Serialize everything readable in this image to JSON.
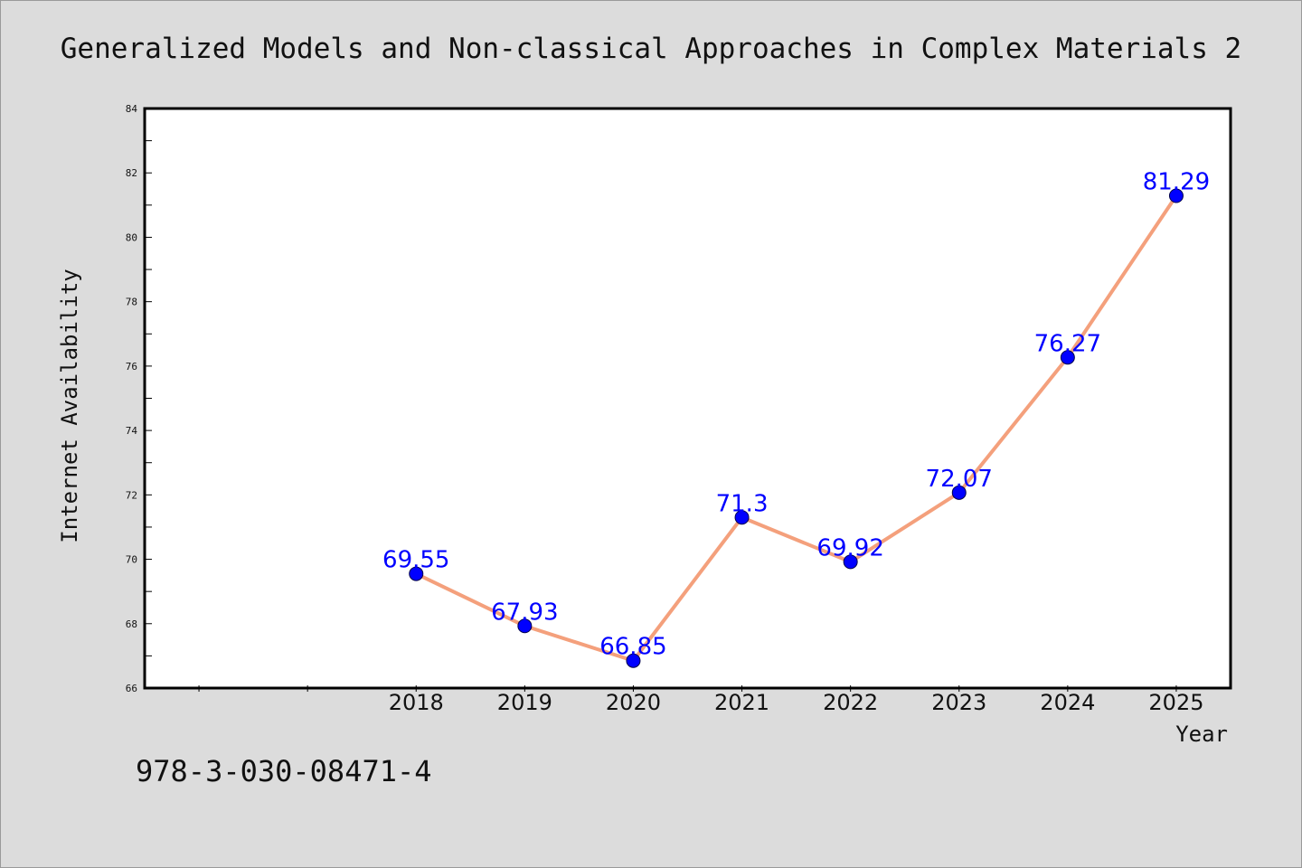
{
  "chart_data": {
    "type": "line",
    "title": "Generalized Models and Non-classical Approaches in Complex Materials 2",
    "xlabel": "Year",
    "ylabel": "Internet Availability",
    "x_range": [
      2015.5,
      2025.5
    ],
    "x_tick_labels": [
      "2018",
      "2019",
      "2020",
      "2021",
      "2022",
      "2023",
      "2024",
      "2025"
    ],
    "ylim": [
      66,
      84
    ],
    "y_ticks": [
      66,
      68,
      70,
      72,
      74,
      76,
      78,
      80,
      82,
      84
    ],
    "grid": false,
    "legend": "none",
    "series": [
      {
        "x": [
          2018,
          2019,
          2020,
          2021,
          2022,
          2023,
          2024,
          2025
        ],
        "values": [
          69.55,
          67.93,
          66.85,
          71.3,
          69.92,
          72.07,
          76.27,
          81.29
        ],
        "labels": [
          "69.55",
          "67.93",
          "66.85",
          "71.3",
          "69.92",
          "72.07",
          "76.27",
          "81.29"
        ]
      }
    ],
    "colors": {
      "line": "#f4a07c",
      "marker": "#0000ff",
      "label": "#0000ff"
    }
  },
  "footer": {
    "isbn": "978-3-030-08471-4"
  }
}
